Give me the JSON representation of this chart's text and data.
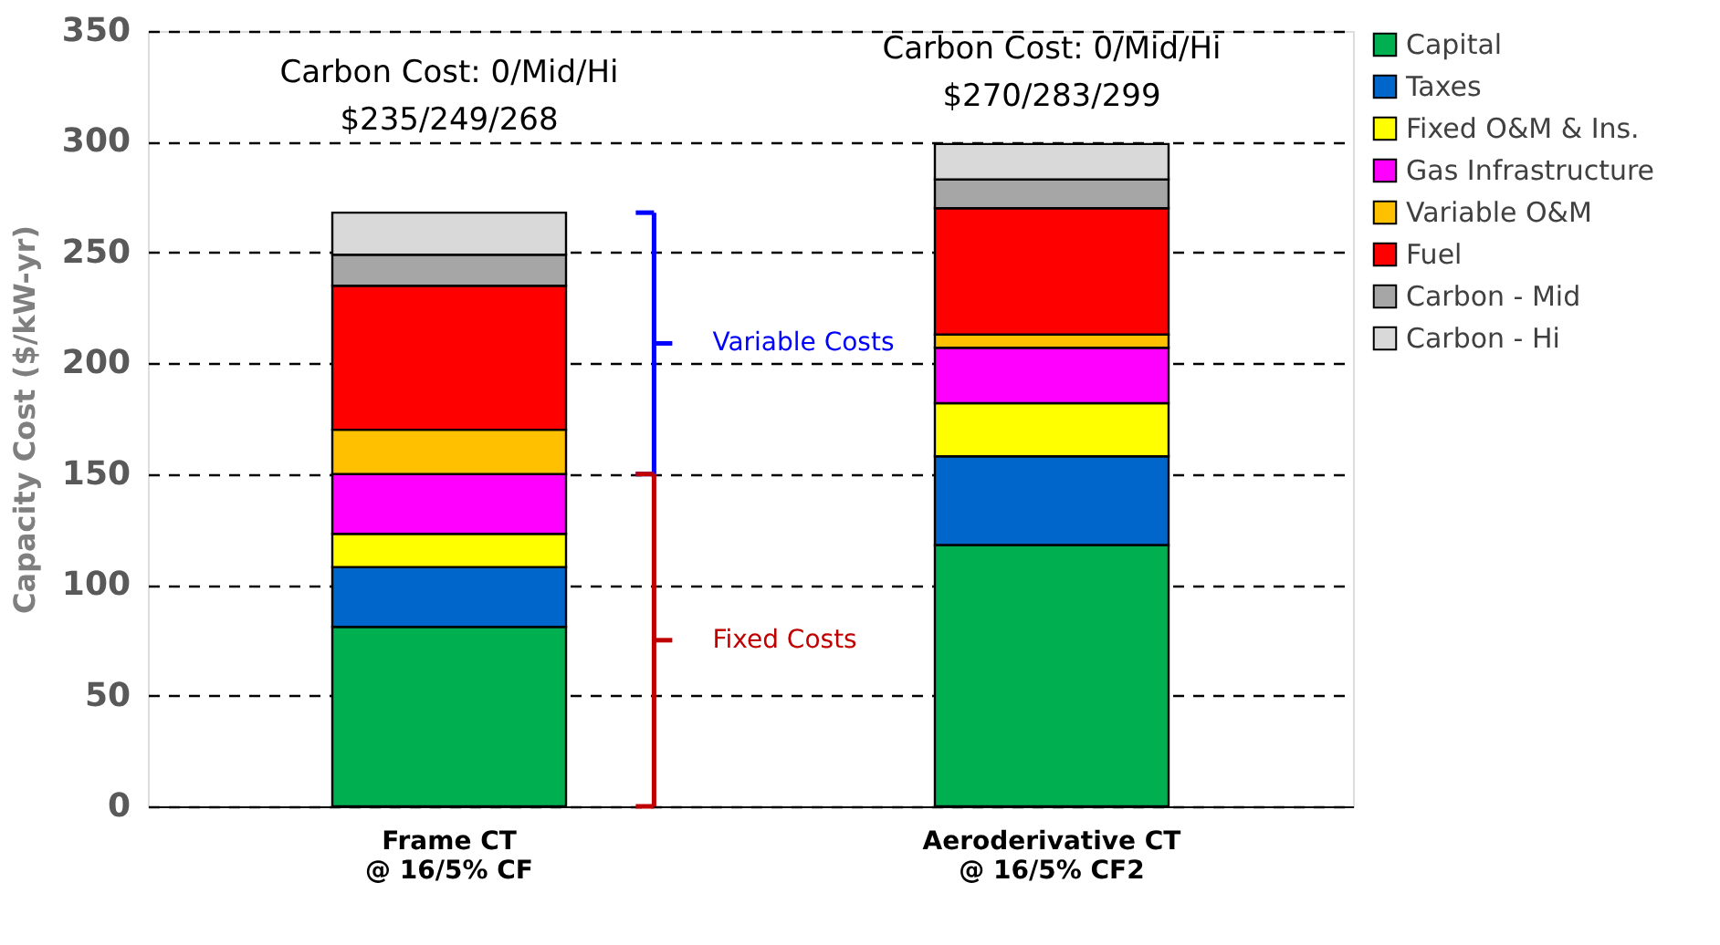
{
  "chart_data": {
    "type": "bar",
    "stacked": true,
    "categories": [
      "Frame CT\n@ 16/5% CF",
      "Aeroderivative CT\n@ 16/5% CF2"
    ],
    "ylabel": "Capacity Cost ($/kW-yr)",
    "ylim": [
      0,
      350
    ],
    "yticks": [
      0,
      50,
      100,
      150,
      200,
      250,
      300,
      350
    ],
    "grid": "y",
    "legend": "right",
    "series": [
      {
        "name": "Capital",
        "color": "#00b050",
        "values": [
          81,
          118
        ]
      },
      {
        "name": "Taxes",
        "color": "#0066cc",
        "values": [
          27,
          40
        ]
      },
      {
        "name": "Fixed O&M & Ins.",
        "color": "#ffff00",
        "values": [
          15,
          24
        ]
      },
      {
        "name": "Gas Infrastructure",
        "color": "#ff00ff",
        "values": [
          27,
          25
        ]
      },
      {
        "name": "Variable O&M",
        "color": "#ffc000",
        "values": [
          20,
          6
        ]
      },
      {
        "name": "Fuel",
        "color": "#ff0000",
        "values": [
          65,
          57
        ]
      },
      {
        "name": "Carbon - Mid",
        "color": "#a6a6a6",
        "values": [
          14,
          13
        ]
      },
      {
        "name": "Carbon - Hi",
        "color": "#d9d9d9",
        "values": [
          19,
          16
        ]
      }
    ],
    "annotations": [
      "Carbon Cost: 0/Mid/Hi\n$235/249/268",
      "Carbon Cost: 0/Mid/Hi\n$270/283/299",
      "Variable Costs",
      "Fixed Costs"
    ]
  }
}
